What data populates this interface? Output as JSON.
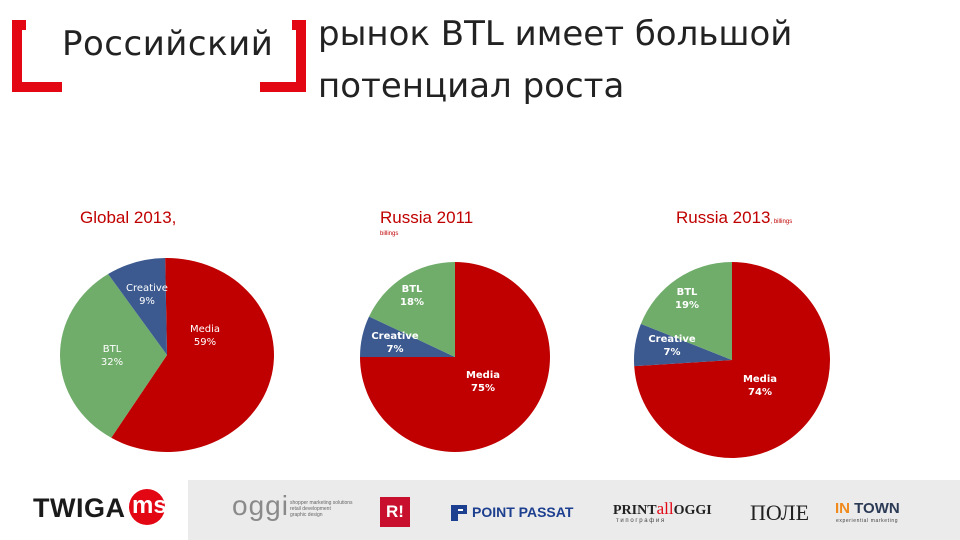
{
  "header": {
    "title_left": "Российский",
    "title_right_line1": "рынок BTL имеет большой",
    "title_right_line2": "потенциал роста",
    "accent_color": "#e30613"
  },
  "chart_data": [
    {
      "type": "pie",
      "title": "Global  2013,",
      "slices": [
        {
          "label": "Media",
          "value": 59,
          "display": "59%",
          "color": "#c00000"
        },
        {
          "label": "BTL",
          "value": 32,
          "display": "32%",
          "color": "#70ad6b"
        },
        {
          "label": "Creative",
          "value": 9,
          "display": "9%",
          "color": "#3c5a8f"
        }
      ]
    },
    {
      "type": "pie",
      "title": "Russia 2011",
      "subtitle": "billings",
      "slices": [
        {
          "label": "Media",
          "value": 75,
          "display": "75%",
          "color": "#c00000"
        },
        {
          "label": "Creative",
          "value": 7,
          "display": "7%",
          "color": "#3c5a8f"
        },
        {
          "label": "BTL",
          "value": 18,
          "display": "18%",
          "color": "#70ad6b"
        }
      ]
    },
    {
      "type": "pie",
      "title": "Russia 2013",
      "subtitle": ", billings",
      "slices": [
        {
          "label": "Media",
          "value": 74,
          "display": "74%",
          "color": "#c00000"
        },
        {
          "label": "Creative",
          "value": 7,
          "display": "7%",
          "color": "#3c5a8f"
        },
        {
          "label": "BTL",
          "value": 19,
          "display": "19%",
          "color": "#70ad6b"
        }
      ]
    }
  ],
  "footer": {
    "logos": {
      "twiga": "TWIGA",
      "ms": "ms",
      "oggi": "oggi",
      "oggi_tagline": [
        "shopper marketing solutions",
        "retail development",
        "graphic design"
      ],
      "r": "R!",
      "point_passat": "POINT PASSAT",
      "printalloggi_print": "PRINT",
      "printalloggi_all": "all",
      "printalloggi_oggi": "OGGI",
      "printalloggi_sub": "т и п о г р а ф и я",
      "pole": "ПОЛЕ",
      "intown_in": "IN",
      "intown_town": " TOWN",
      "intown_sub": "experiential marketing"
    }
  }
}
